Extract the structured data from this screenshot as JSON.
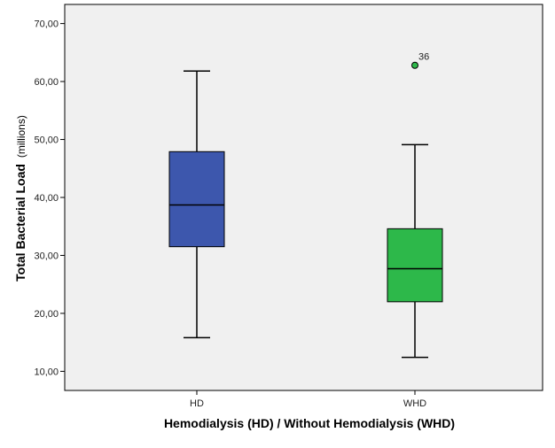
{
  "chart_data": {
    "type": "boxplot",
    "title": "",
    "xlabel": "Hemodialysis (HD) / Without Hemodialysis (WHD)",
    "ylabel_bold": "Total Bacterial Load",
    "ylabel_unit": "(millions)",
    "ylim": [
      6.7,
      73.3
    ],
    "yticks": [
      10,
      20,
      30,
      40,
      50,
      60,
      70
    ],
    "ytick_labels": [
      "10,00",
      "20,00",
      "30,00",
      "40,00",
      "50,00",
      "60,00",
      "70,00"
    ],
    "categories": [
      "HD",
      "WHD"
    ],
    "grid": false,
    "background": "#f0f0f0",
    "series": [
      {
        "name": "HD",
        "min": 15.8,
        "q1": 31.5,
        "median": 38.7,
        "q3": 47.9,
        "max": 61.8,
        "color": "#3d57ad",
        "outliers": []
      },
      {
        "name": "WHD",
        "min": 12.4,
        "q1": 22.0,
        "median": 27.7,
        "q3": 34.6,
        "max": 49.1,
        "color": "#2db84a",
        "outliers": [
          {
            "value": 62.8,
            "label": "36"
          }
        ]
      }
    ]
  }
}
